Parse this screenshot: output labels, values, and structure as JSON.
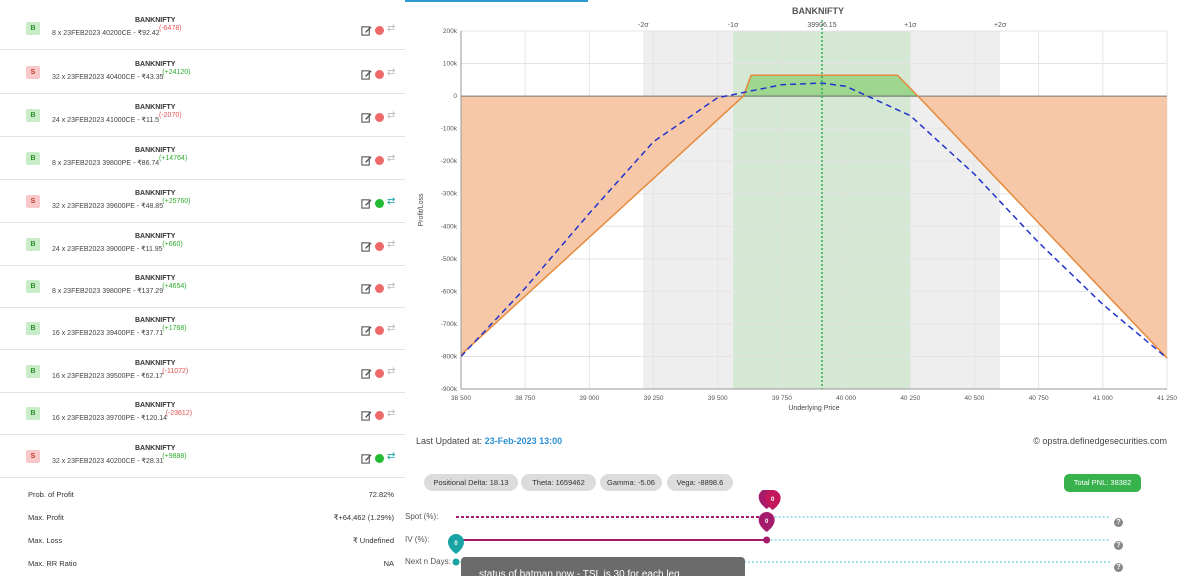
{
  "legs": [
    {
      "side": "B",
      "symbol": "BANKNIFTY",
      "desc": "8 x 23FEB2023 40200CE - ₹92.42",
      "pnl": "(-6478)",
      "pnl_sign": "neg",
      "active": false
    },
    {
      "side": "S",
      "symbol": "BANKNIFTY",
      "desc": "32 x 23FEB2023 40400CE - ₹43.35",
      "pnl": "(+24120)",
      "pnl_sign": "pos",
      "active": false
    },
    {
      "side": "B",
      "symbol": "BANKNIFTY",
      "desc": "24 x 23FEB2023 41000CE - ₹11.5",
      "pnl": "(-2070)",
      "pnl_sign": "neg",
      "active": false
    },
    {
      "side": "B",
      "symbol": "BANKNIFTY",
      "desc": "8 x 23FEB2023 39800PE - ₹86.74",
      "pnl": "(+14764)",
      "pnl_sign": "pos",
      "active": false
    },
    {
      "side": "S",
      "symbol": "BANKNIFTY",
      "desc": "32 x 23FEB2023 39600PE - ₹48.85",
      "pnl": "(+25760)",
      "pnl_sign": "pos",
      "active": true
    },
    {
      "side": "B",
      "symbol": "BANKNIFTY",
      "desc": "24 x 23FEB2023 39000PE - ₹11.95",
      "pnl": "(+660)",
      "pnl_sign": "pos",
      "active": false
    },
    {
      "side": "B",
      "symbol": "BANKNIFTY",
      "desc": "8 x 23FEB2023 39800PE - ₹137.29",
      "pnl": "(+4654)",
      "pnl_sign": "pos",
      "active": false
    },
    {
      "side": "B",
      "symbol": "BANKNIFTY",
      "desc": "16 x 23FEB2023 39400PE - ₹37.71",
      "pnl": "(+1768)",
      "pnl_sign": "pos",
      "active": false
    },
    {
      "side": "B",
      "symbol": "BANKNIFTY",
      "desc": "16 x 23FEB2023 39500PE - ₹62.17",
      "pnl": "(-11072)",
      "pnl_sign": "neg",
      "active": false
    },
    {
      "side": "B",
      "symbol": "BANKNIFTY",
      "desc": "16 x 23FEB2023 39700PE - ₹120.14",
      "pnl": "(-23612)",
      "pnl_sign": "neg",
      "active": false
    },
    {
      "side": "S",
      "symbol": "BANKNIFTY",
      "desc": "32 x 23FEB2023 40200CE - ₹28.31",
      "pnl": "(+9888)",
      "pnl_sign": "pos",
      "active": true
    }
  ],
  "stats": [
    {
      "label": "Prob. of Profit",
      "value": "72.82%"
    },
    {
      "label": "Max. Profit",
      "value": "₹+64,462 (1.29%)"
    },
    {
      "label": "Max. Loss",
      "value": "₹ Undefined"
    },
    {
      "label": "Max. RR Ratio",
      "value": "NA"
    }
  ],
  "chart_data": {
    "type": "area",
    "title": "BANKNIFTY",
    "spot_label": "39906.15",
    "spot": 39906.15,
    "xlabel": "Underlying Price",
    "ylabel": "Profit/Loss",
    "xlim": [
      38500,
      41250
    ],
    "ylim": [
      -900000,
      200000
    ],
    "x_ticks": [
      "38 500",
      "38 750",
      "39 000",
      "39 250",
      "39 500",
      "39 750",
      "40 000",
      "40 250",
      "40 500",
      "40 750",
      "41 000",
      "41 250"
    ],
    "y_ticks": [
      "200k",
      "100k",
      "0",
      "-100k",
      "-200k",
      "-300k",
      "-400k",
      "-500k",
      "-600k",
      "-700k",
      "-800k",
      "-900k"
    ],
    "sigma_labels": [
      "-2σ",
      "-1σ",
      "+1σ",
      "+2σ"
    ],
    "sigma_levels": [
      39210,
      39560,
      40250,
      40600
    ],
    "series": [
      {
        "name": "",
        "x": [
          38500,
          39600,
          39630,
          40200,
          40280,
          41250
        ],
        "values": [
          -795000,
          0,
          64000,
          64000,
          0,
          -805000
        ]
      },
      {
        "name": "",
        "x": [
          38500,
          38750,
          39000,
          39250,
          39500,
          39750,
          39906,
          40000,
          40250,
          40500,
          40750,
          41000,
          41250
        ],
        "values": [
          -800000,
          -590000,
          -360000,
          -140000,
          -5000,
          35000,
          40000,
          30000,
          -60000,
          -240000,
          -450000,
          -640000,
          -805000
        ]
      }
    ]
  },
  "footer": {
    "updated_label": "Last Updated at:",
    "updated_value": "23-Feb-2023 13:00",
    "copyright": "© opstra.definedgesecurities.com"
  },
  "greeks": [
    {
      "label": "Positional Delta: 18.13"
    },
    {
      "label": "Theta: 1659462"
    },
    {
      "label": "Gamma: -5.06"
    },
    {
      "label": "Vega: -8898.6"
    }
  ],
  "total_pnl": "Total PNL: 38382",
  "sliders": [
    {
      "label": "Spot (%):",
      "value": "0",
      "fraction": 0.475
    },
    {
      "label": "IV (%):",
      "value": "0",
      "fraction": 0.475
    },
    {
      "label": "Next n Days:",
      "value": "0",
      "fraction": 0.0
    }
  ],
  "help": "?",
  "tooltip": "status of batman now - TSL is 30 for each leg",
  "colors": {
    "loss_fill": "#f6c8a8",
    "profit_fill": "#9fd68f",
    "payoff": "#e58a3c",
    "expiry_t0": "#2233cc",
    "spot_line": "#2fae4f",
    "sigma_band": "#eeeeee",
    "one_sigma_band": "#d4e8d4",
    "accent": "#2b8fd6",
    "marker": "#a41c6b",
    "marker_teal": "#1aa3a3"
  }
}
